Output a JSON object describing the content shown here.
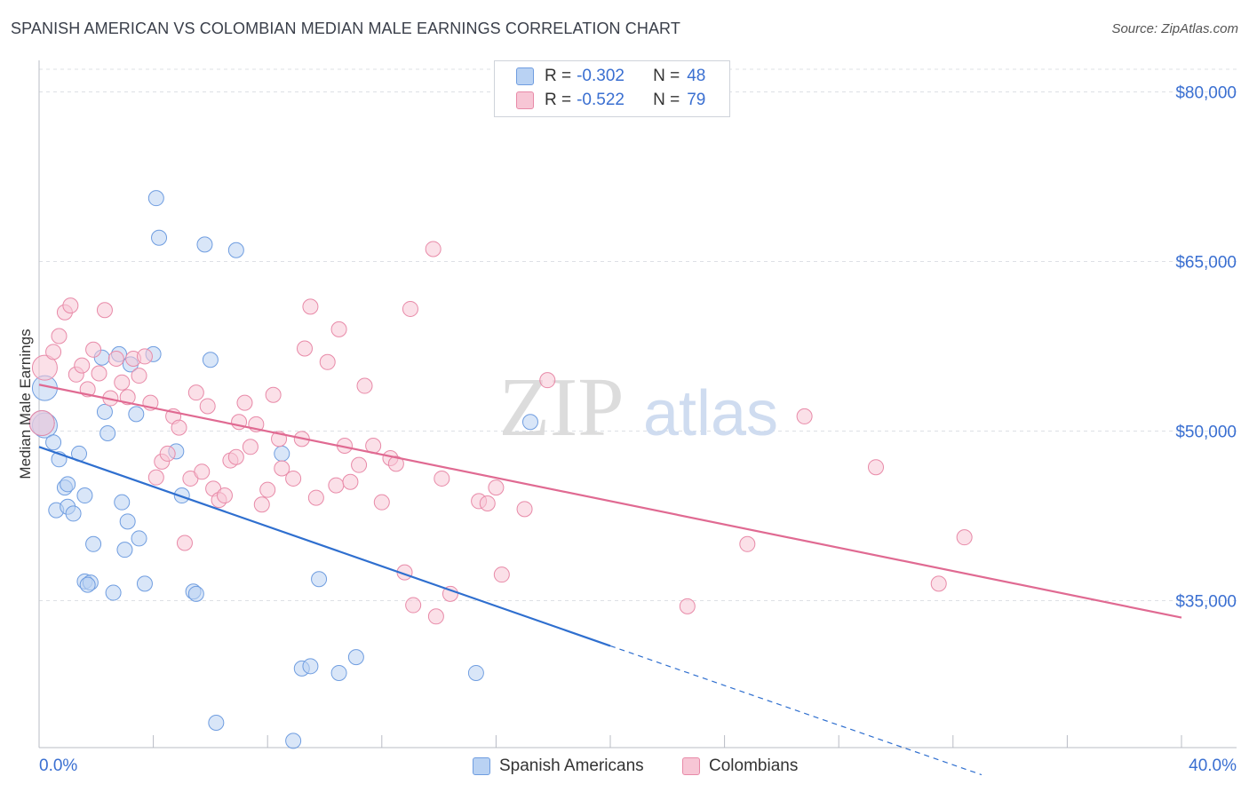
{
  "title": "SPANISH AMERICAN VS COLOMBIAN MEDIAN MALE EARNINGS CORRELATION CHART",
  "source": "Source: ZipAtlas.com",
  "watermark": {
    "zip": "ZIP",
    "atlas": "atlas"
  },
  "legend": {
    "rows": [
      {
        "r_label": "R = ",
        "r_value": "-0.302",
        "n_label": "N = ",
        "n_value": "48",
        "color": "#a9c6f0",
        "border": "#6f9de0"
      },
      {
        "r_label": "R = ",
        "r_value": "-0.522",
        "n_label": "N = ",
        "n_value": "79",
        "color": "#f7c0d0",
        "border": "#e88aa8"
      }
    ]
  },
  "bottom_legend": [
    {
      "label": "Spanish Americans",
      "color": "#a9c6f0",
      "border": "#6f9de0"
    },
    {
      "label": "Colombians",
      "color": "#f7c0d0",
      "border": "#e88aa8"
    }
  ],
  "x_axis": {
    "min_label": "0.0%",
    "max_label": "40.0%"
  },
  "chart_data": {
    "type": "scatter",
    "title": "SPANISH AMERICAN VS COLOMBIAN MEDIAN MALE EARNINGS CORRELATION CHART",
    "xlabel": "",
    "ylabel": "Median Male Earnings",
    "xlim": [
      0,
      40
    ],
    "ylim": [
      22000,
      82000
    ],
    "y_ticks": [
      {
        "value": 35000,
        "label": "$35,000"
      },
      {
        "value": 50000,
        "label": "$50,000"
      },
      {
        "value": 65000,
        "label": "$65,000"
      },
      {
        "value": 80000,
        "label": "$80,000"
      }
    ],
    "series": [
      {
        "name": "Spanish Americans",
        "color": "#6f9de0",
        "fill": "#b9d2f3",
        "line_color": "#2f6fcf",
        "trend": {
          "x0": 0,
          "y0": 48600,
          "x1": 20,
          "y1": 31000,
          "dash_to_x": 33,
          "dash_to_y": 19600
        },
        "points": [
          [
            0.2,
            50500
          ],
          [
            0.2,
            53800
          ],
          [
            0.5,
            49000
          ],
          [
            0.7,
            47500
          ],
          [
            0.6,
            43000
          ],
          [
            0.9,
            45000
          ],
          [
            1.0,
            45300
          ],
          [
            1.0,
            43300
          ],
          [
            1.2,
            42700
          ],
          [
            1.4,
            48000
          ],
          [
            1.6,
            44300
          ],
          [
            1.6,
            36700
          ],
          [
            1.8,
            36600
          ],
          [
            1.7,
            36400
          ],
          [
            1.9,
            40000
          ],
          [
            2.2,
            56500
          ],
          [
            2.3,
            51700
          ],
          [
            2.4,
            49800
          ],
          [
            2.6,
            35700
          ],
          [
            2.8,
            56800
          ],
          [
            2.9,
            43700
          ],
          [
            3.0,
            39500
          ],
          [
            3.1,
            42000
          ],
          [
            3.2,
            55900
          ],
          [
            3.4,
            51500
          ],
          [
            3.5,
            40500
          ],
          [
            3.7,
            36500
          ],
          [
            4.0,
            56800
          ],
          [
            4.1,
            70600
          ],
          [
            4.2,
            67100
          ],
          [
            4.8,
            48200
          ],
          [
            5.0,
            44300
          ],
          [
            5.4,
            35800
          ],
          [
            5.5,
            35600
          ],
          [
            5.8,
            66500
          ],
          [
            6.0,
            56300
          ],
          [
            6.2,
            24200
          ],
          [
            6.9,
            66000
          ],
          [
            8.5,
            48000
          ],
          [
            8.9,
            22600
          ],
          [
            9.2,
            29000
          ],
          [
            9.5,
            29200
          ],
          [
            9.8,
            36900
          ],
          [
            10.5,
            28600
          ],
          [
            11.1,
            30000
          ],
          [
            15.3,
            28600
          ],
          [
            17.2,
            50800
          ],
          [
            0.1,
            50700
          ]
        ]
      },
      {
        "name": "Colombians",
        "color": "#e88aa8",
        "fill": "#f7c6d5",
        "line_color": "#e06a92",
        "trend": {
          "x0": 0,
          "y0": 54100,
          "x1": 40,
          "y1": 33500
        },
        "points": [
          [
            0.1,
            50700
          ],
          [
            0.2,
            55600
          ],
          [
            0.5,
            57000
          ],
          [
            0.7,
            58400
          ],
          [
            0.9,
            60500
          ],
          [
            1.1,
            61100
          ],
          [
            1.3,
            55000
          ],
          [
            1.5,
            55800
          ],
          [
            1.7,
            53700
          ],
          [
            1.9,
            57200
          ],
          [
            2.1,
            55100
          ],
          [
            2.3,
            60700
          ],
          [
            2.5,
            52900
          ],
          [
            2.7,
            56400
          ],
          [
            2.9,
            54300
          ],
          [
            3.1,
            53000
          ],
          [
            3.3,
            56400
          ],
          [
            3.5,
            54900
          ],
          [
            3.7,
            56600
          ],
          [
            3.9,
            52500
          ],
          [
            4.1,
            45900
          ],
          [
            4.3,
            47300
          ],
          [
            4.5,
            48000
          ],
          [
            4.7,
            51300
          ],
          [
            4.9,
            50300
          ],
          [
            5.1,
            40100
          ],
          [
            5.3,
            45800
          ],
          [
            5.5,
            53400
          ],
          [
            5.7,
            46400
          ],
          [
            5.9,
            52200
          ],
          [
            6.1,
            44900
          ],
          [
            6.3,
            43900
          ],
          [
            6.5,
            44300
          ],
          [
            6.7,
            47400
          ],
          [
            6.9,
            47700
          ],
          [
            7.0,
            50800
          ],
          [
            7.2,
            52500
          ],
          [
            7.4,
            48600
          ],
          [
            7.6,
            50600
          ],
          [
            7.8,
            43500
          ],
          [
            8.0,
            44800
          ],
          [
            8.2,
            53200
          ],
          [
            8.4,
            49300
          ],
          [
            8.5,
            46700
          ],
          [
            8.9,
            45800
          ],
          [
            9.2,
            49300
          ],
          [
            9.3,
            57300
          ],
          [
            9.5,
            61000
          ],
          [
            9.7,
            44100
          ],
          [
            10.1,
            56100
          ],
          [
            10.4,
            45200
          ],
          [
            10.5,
            59000
          ],
          [
            10.7,
            48700
          ],
          [
            10.9,
            45500
          ],
          [
            11.2,
            47000
          ],
          [
            11.4,
            54000
          ],
          [
            11.7,
            48700
          ],
          [
            12.0,
            43700
          ],
          [
            12.3,
            47600
          ],
          [
            12.5,
            47100
          ],
          [
            12.8,
            37500
          ],
          [
            13.0,
            60800
          ],
          [
            13.1,
            34600
          ],
          [
            13.8,
            66100
          ],
          [
            13.9,
            33600
          ],
          [
            14.1,
            45800
          ],
          [
            14.4,
            35600
          ],
          [
            15.4,
            43800
          ],
          [
            15.7,
            43600
          ],
          [
            16.0,
            45000
          ],
          [
            16.2,
            37300
          ],
          [
            17.0,
            43100
          ],
          [
            17.8,
            54500
          ],
          [
            22.7,
            34500
          ],
          [
            24.8,
            40000
          ],
          [
            26.8,
            51300
          ],
          [
            29.3,
            46800
          ],
          [
            31.5,
            36500
          ],
          [
            32.4,
            40600
          ]
        ]
      }
    ]
  }
}
